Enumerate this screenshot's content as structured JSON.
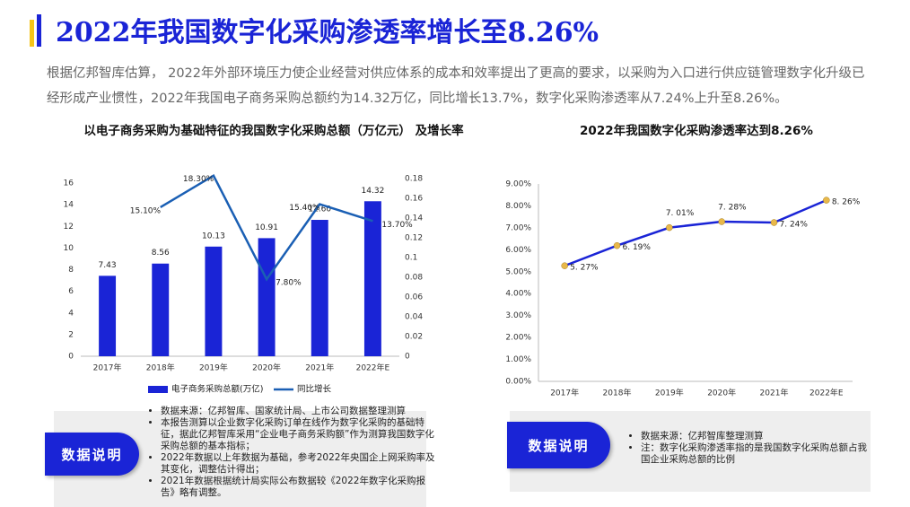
{
  "header": {
    "title": "2022年我国数字化采购渗透率增长至8.26%",
    "paragraph": "根据亿邦智库估算， 2022年外部环境压力使企业经营对供应体系的成本和效率提出了更高的要求，以采购为入口进行供应链管理数字化升级已经形成产业惯性，2022年我国电子商务采购总额约为14.32万亿，同比增长13.7%，数字化采购渗透率从7.24%上升至8.26%。"
  },
  "chart_data": [
    {
      "type": "combo",
      "title": "以电子商务采购为基础特征的我国数字化采购总额（万亿元） 及增长率",
      "categories": [
        "2017年",
        "2018年",
        "2019年",
        "2020年",
        "2021年",
        "2022年E"
      ],
      "series": [
        {
          "name": "电子商务采购总额(万亿)",
          "type": "bar",
          "color": "#1a24d6",
          "values": [
            7.43,
            8.56,
            10.13,
            10.91,
            12.6,
            14.32
          ],
          "value_labels": [
            "7.43",
            "8.56",
            "10.13",
            "10.91",
            "12.60",
            "14.32"
          ]
        },
        {
          "name": "同比增长",
          "type": "line",
          "axis": "y2",
          "color": "#1a5fb4",
          "values": [
            null,
            0.151,
            0.183,
            0.078,
            0.154,
            0.137
          ],
          "value_labels": [
            null,
            "15.10%",
            "18.30%",
            "7.80%",
            "15.40%",
            "13.70%"
          ]
        }
      ],
      "ylim": [
        0,
        16
      ],
      "yticks": [
        0,
        2,
        4,
        6,
        8,
        10,
        12,
        14,
        16
      ],
      "y2lim": [
        0,
        0.2
      ],
      "y2ticks": [
        0,
        0.02,
        0.04,
        0.06,
        0.08,
        0.1,
        0.12,
        0.14,
        0.16,
        0.18
      ],
      "grid": false,
      "legend": "bottom"
    },
    {
      "type": "line",
      "title": "2022年我国数字化采购渗透率达到8.26%",
      "categories": [
        "2017年",
        "2018年",
        "2019年",
        "2020年",
        "2021年",
        "2022年E"
      ],
      "values": [
        5.27,
        6.19,
        7.01,
        7.28,
        7.24,
        8.26
      ],
      "value_labels": [
        "5. 27%",
        "6. 19%",
        "7. 01%",
        "7. 28%",
        "7. 24%",
        "8. 26%"
      ],
      "color": "#1a24d6",
      "marker_color": "#e8b84a",
      "ylim": [
        0,
        9
      ],
      "yticks": [
        {
          "value": 0,
          "label": "0.00%"
        },
        {
          "value": 1,
          "label": "1.00%"
        },
        {
          "value": 2,
          "label": "2.00%"
        },
        {
          "value": 3,
          "label": "3.00%"
        },
        {
          "value": 4,
          "label": "4.00%"
        },
        {
          "value": 5,
          "label": "5.00%"
        },
        {
          "value": 6,
          "label": "6.00%"
        },
        {
          "value": 7,
          "label": "7.00%"
        },
        {
          "value": 8,
          "label": "8.00%"
        },
        {
          "value": 9,
          "label": "9.00%"
        }
      ],
      "grid": false
    }
  ],
  "notes": [
    {
      "label": "数据说明",
      "items": [
        "数据来源：亿邦智库、国家统计局、上市公司数据整理测算",
        "本报告测算以企业数字化采购订单在线作为数字化采购的基础特征，据此亿邦智库采用“企业电子商务采购额”作为测算我国数字化采购总额的基本指标；",
        "2022年数据以上年数据为基础，参考2022年央国企上网采购率及其变化，调整估计得出；",
        "2021年数据根据统计局实际公布数据较《2022年数字化采购报告》略有调整。"
      ]
    },
    {
      "label": "数据说明",
      "items": [
        "数据来源：亿邦智库整理测算",
        "注：数字化采购渗透率指的是我国数字化采购总额占我国企业采购总额的比例"
      ]
    }
  ]
}
